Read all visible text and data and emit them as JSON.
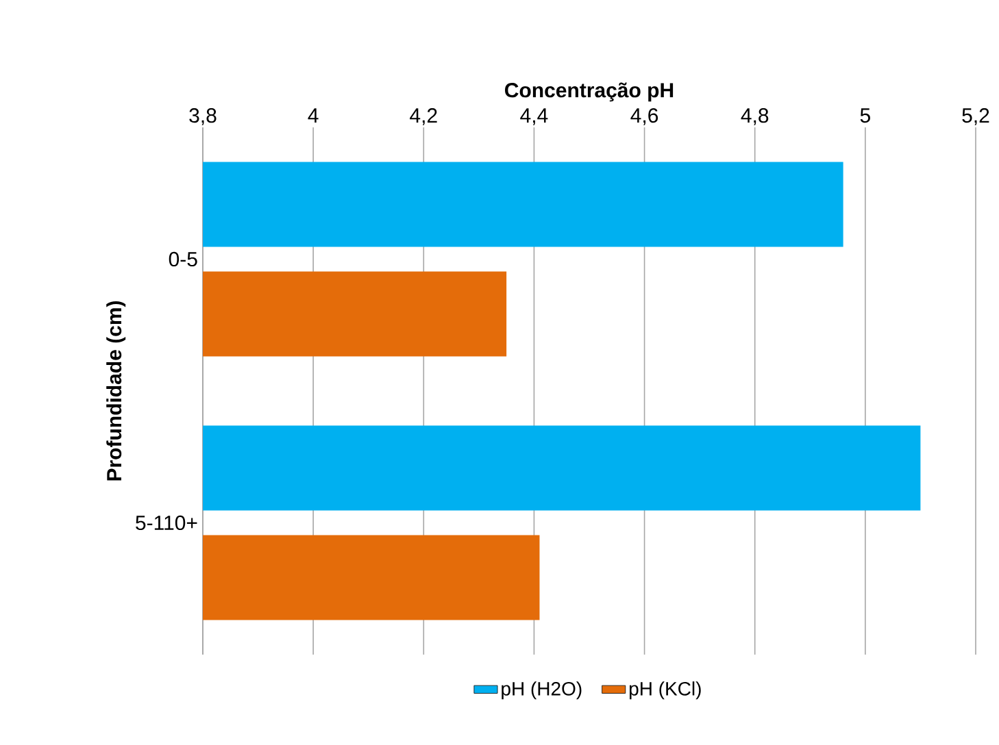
{
  "chart_data": {
    "type": "bar",
    "orientation": "horizontal",
    "xlabel": "Concentração pH",
    "ylabel": "Profundidade (cm)",
    "categories": [
      "0-5",
      "5-110+"
    ],
    "series": [
      {
        "name": "pH (H2O)",
        "color": "#00b0f0",
        "values": [
          4.96,
          5.1
        ]
      },
      {
        "name": "pH (KCl)",
        "color": "#e46c0a",
        "values": [
          4.35,
          4.41
        ]
      }
    ],
    "xlim": [
      3.8,
      5.2
    ],
    "xticks": [
      {
        "value": 3.8,
        "label": "3,8"
      },
      4,
      {
        "value": 4.2,
        "label": "4,2"
      },
      {
        "value": 4.4,
        "label": "4,4"
      },
      {
        "value": 4.6,
        "label": "4,6"
      },
      {
        "value": 4.8,
        "label": "4,8"
      },
      5,
      {
        "value": 5.2,
        "label": "5,2"
      }
    ],
    "grid": "x",
    "legend": "bottom"
  }
}
